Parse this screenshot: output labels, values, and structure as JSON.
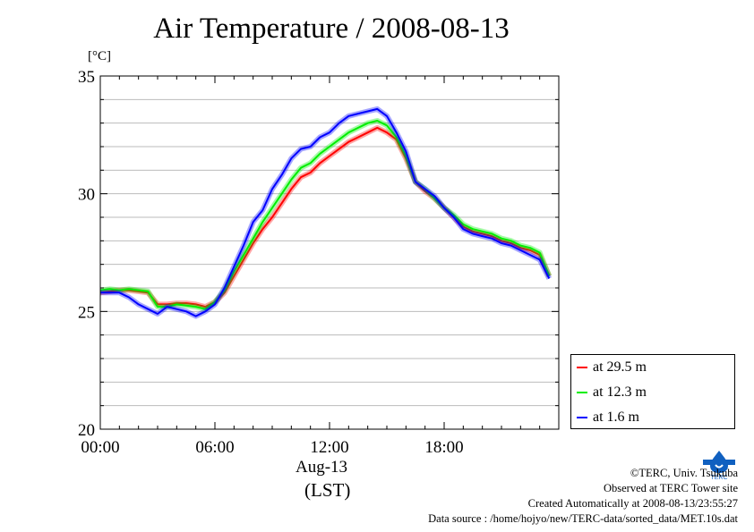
{
  "title": "Air Temperature / 2008-08-13",
  "unit_label": "[°C]",
  "date_label": "Aug-13",
  "timezone_label": "(LST)",
  "credits": {
    "copyright": "©TERC, Univ. Tsukuba",
    "observed": "Observed at TERC Tower site",
    "created": "Created Automatically at 2008-08-13/23:55:27",
    "source": "Data source : /home/hojyo/new/TERC-data/sorted_data/MET.10s.dat"
  },
  "logo": {
    "icon": "terc-logo-icon",
    "text": "TERC"
  },
  "chart_data": {
    "type": "line",
    "title": "Air Temperature / 2008-08-13",
    "ylabel": "[°C]",
    "xlabel": "Aug-13 (LST)",
    "x_unit": "hours",
    "xlim": [
      0,
      24
    ],
    "ylim": [
      20,
      35
    ],
    "x_ticks": [
      0,
      6,
      12,
      18
    ],
    "x_tick_labels": [
      "00:00",
      "06:00",
      "12:00",
      "18:00"
    ],
    "y_ticks": [
      20,
      25,
      30,
      35
    ],
    "y_tick_labels": [
      "20",
      "25",
      "30",
      "35"
    ],
    "grid": true,
    "legend_position": "bottom-right, outside plot",
    "series": [
      {
        "name": "at 29.5 m",
        "color": "#ff0000",
        "x": [
          0,
          0.5,
          1,
          1.5,
          2,
          2.5,
          3,
          3.5,
          4,
          4.5,
          5,
          5.5,
          6,
          6.5,
          7,
          7.5,
          8,
          8.5,
          9,
          9.5,
          10,
          10.5,
          11,
          11.5,
          12,
          12.5,
          13,
          13.5,
          14,
          14.5,
          15,
          15.5,
          16,
          16.5,
          17,
          17.5,
          18,
          18.5,
          19,
          19.5,
          20,
          20.5,
          21,
          21.5,
          22,
          22.5,
          23,
          23.5
        ],
        "values": [
          25.8,
          25.85,
          25.9,
          25.9,
          25.85,
          25.8,
          25.3,
          25.3,
          25.35,
          25.35,
          25.3,
          25.2,
          25.4,
          25.8,
          26.5,
          27.2,
          27.9,
          28.5,
          29.0,
          29.6,
          30.2,
          30.7,
          30.9,
          31.3,
          31.6,
          31.9,
          32.2,
          32.4,
          32.6,
          32.8,
          32.6,
          32.3,
          31.5,
          30.5,
          30.1,
          29.8,
          29.4,
          29.0,
          28.6,
          28.4,
          28.3,
          28.2,
          28.0,
          27.9,
          27.7,
          27.6,
          27.4,
          26.5
        ]
      },
      {
        "name": "at 12.3 m",
        "color": "#00ee00",
        "x": [
          0,
          0.5,
          1,
          1.5,
          2,
          2.5,
          3,
          3.5,
          4,
          4.5,
          5,
          5.5,
          6,
          6.5,
          7,
          7.5,
          8,
          8.5,
          9,
          9.5,
          10,
          10.5,
          11,
          11.5,
          12,
          12.5,
          13,
          13.5,
          14,
          14.5,
          15,
          15.5,
          16,
          16.5,
          17,
          17.5,
          18,
          18.5,
          19,
          19.5,
          20,
          20.5,
          21,
          21.5,
          22,
          22.5,
          23,
          23.5
        ],
        "values": [
          25.9,
          25.95,
          25.9,
          25.95,
          25.9,
          25.85,
          25.2,
          25.2,
          25.3,
          25.25,
          25.2,
          25.1,
          25.4,
          25.9,
          26.7,
          27.4,
          28.1,
          28.8,
          29.4,
          30.0,
          30.6,
          31.1,
          31.3,
          31.7,
          32.0,
          32.3,
          32.6,
          32.8,
          33.0,
          33.1,
          32.9,
          32.4,
          31.6,
          30.5,
          30.2,
          29.8,
          29.4,
          29.1,
          28.7,
          28.5,
          28.4,
          28.3,
          28.1,
          28.0,
          27.8,
          27.7,
          27.5,
          26.5
        ]
      },
      {
        "name": "at 1.6 m",
        "color": "#0000ff",
        "x": [
          0,
          0.5,
          1,
          1.5,
          2,
          2.5,
          3,
          3.5,
          4,
          4.5,
          5,
          5.5,
          6,
          6.5,
          7,
          7.5,
          8,
          8.5,
          9,
          9.5,
          10,
          10.5,
          11,
          11.5,
          12,
          12.5,
          13,
          13.5,
          14,
          14.5,
          15,
          15.5,
          16,
          16.5,
          17,
          17.5,
          18,
          18.5,
          19,
          19.5,
          20,
          20.5,
          21,
          21.5,
          22,
          22.5,
          23,
          23.5
        ],
        "values": [
          25.8,
          25.8,
          25.8,
          25.6,
          25.3,
          25.1,
          24.9,
          25.2,
          25.1,
          25.0,
          24.8,
          25.0,
          25.3,
          26.0,
          26.9,
          27.8,
          28.8,
          29.3,
          30.2,
          30.8,
          31.5,
          31.9,
          32.0,
          32.4,
          32.6,
          33.0,
          33.3,
          33.4,
          33.5,
          33.6,
          33.3,
          32.6,
          31.8,
          30.5,
          30.2,
          29.9,
          29.4,
          29.0,
          28.5,
          28.3,
          28.2,
          28.1,
          27.9,
          27.8,
          27.6,
          27.4,
          27.2,
          26.4
        ]
      }
    ]
  }
}
